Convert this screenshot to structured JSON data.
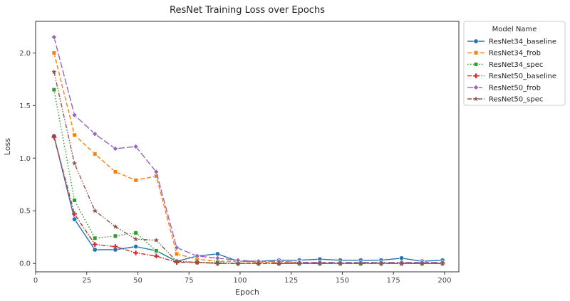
{
  "chart_data": {
    "type": "line",
    "title": "ResNet Training Loss over Epochs",
    "xlabel": "Epoch",
    "ylabel": "Loss",
    "xlim": [
      0,
      207
    ],
    "ylim": [
      -0.08,
      2.3
    ],
    "xticks": [
      0,
      25,
      50,
      75,
      100,
      125,
      150,
      175,
      200
    ],
    "yticks": [
      0.0,
      0.5,
      1.0,
      1.5,
      2.0
    ],
    "xtick_labels": [
      "0",
      "25",
      "50",
      "75",
      "100",
      "125",
      "150",
      "175",
      "200"
    ],
    "ytick_labels": [
      "0.0",
      "0.5",
      "1.0",
      "1.5",
      "2.0"
    ],
    "grid": false,
    "legend": {
      "title": "Model Name",
      "placement": "outside-right-top"
    },
    "x": [
      9,
      19,
      29,
      39,
      49,
      59,
      69,
      79,
      89,
      99,
      109,
      119,
      129,
      139,
      149,
      159,
      169,
      179,
      189,
      199
    ],
    "series": [
      {
        "name": "ResNet34_baseline",
        "color": "#1f77b4",
        "marker": "circle",
        "dash": "solid",
        "values": [
          1.21,
          0.42,
          0.13,
          0.13,
          0.16,
          0.12,
          0.02,
          0.07,
          0.09,
          0.02,
          0.02,
          0.03,
          0.03,
          0.04,
          0.03,
          0.03,
          0.03,
          0.05,
          0.02,
          0.03
        ]
      },
      {
        "name": "ResNet34_frob",
        "color": "#ff7f0e",
        "marker": "square",
        "dash": "dashed",
        "values": [
          2.0,
          1.22,
          1.04,
          0.87,
          0.79,
          0.83,
          0.09,
          0.04,
          0.02,
          0.02,
          0.01,
          0.01,
          0.01,
          0.0,
          0.0,
          0.0,
          0.0,
          0.0,
          0.0,
          0.0
        ]
      },
      {
        "name": "ResNet34_spec",
        "color": "#2ca02c",
        "marker": "square",
        "dash": "dotted",
        "values": [
          1.65,
          0.6,
          0.24,
          0.26,
          0.29,
          0.12,
          0.02,
          0.01,
          0.01,
          0.0,
          0.0,
          0.0,
          0.0,
          0.0,
          0.0,
          0.0,
          0.0,
          0.0,
          0.0,
          0.0
        ]
      },
      {
        "name": "ResNet50_baseline",
        "color": "#d62728",
        "marker": "plus",
        "dash": "dashdot",
        "values": [
          1.2,
          0.47,
          0.18,
          0.16,
          0.1,
          0.07,
          0.01,
          0.01,
          0.0,
          0.0,
          0.0,
          0.0,
          0.0,
          0.0,
          0.0,
          0.0,
          0.0,
          0.0,
          0.0,
          0.0
        ]
      },
      {
        "name": "ResNet50_frob",
        "color": "#9467bd",
        "marker": "diamond",
        "dash": "longdash",
        "values": [
          2.15,
          1.41,
          1.23,
          1.09,
          1.11,
          0.87,
          0.15,
          0.07,
          0.05,
          0.03,
          0.02,
          0.02,
          0.01,
          0.01,
          0.01,
          0.01,
          0.01,
          0.01,
          0.01,
          0.01
        ]
      },
      {
        "name": "ResNet50_spec",
        "color": "#8c564b",
        "marker": "star",
        "dash": "dashdotdot",
        "values": [
          1.82,
          0.95,
          0.5,
          0.35,
          0.23,
          0.22,
          0.02,
          0.01,
          0.0,
          0.0,
          0.0,
          0.0,
          0.0,
          0.0,
          0.0,
          0.0,
          0.0,
          0.0,
          0.0,
          0.0
        ]
      }
    ]
  }
}
